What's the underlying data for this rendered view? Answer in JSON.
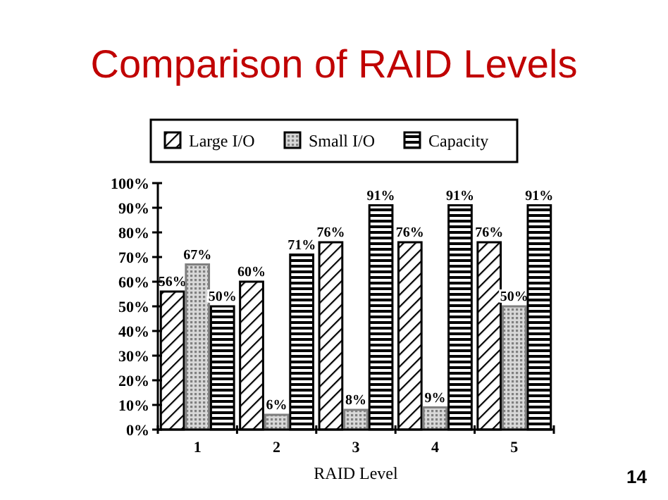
{
  "chart_data": {
    "type": "bar",
    "title": "Comparison of RAID Levels",
    "xlabel": "RAID Level",
    "categories": [
      "1",
      "2",
      "3",
      "4",
      "5"
    ],
    "series": [
      {
        "name": "Large I/O",
        "color": "#000000",
        "values": [
          56,
          60,
          76,
          76,
          76
        ],
        "value_labels": [
          "56%",
          "60%",
          "76%",
          "76%",
          "76%"
        ]
      },
      {
        "name": "Small I/O",
        "color": "#808080",
        "values": [
          67,
          6,
          8,
          9,
          50
        ],
        "value_labels": [
          "67%",
          "6%",
          "8%",
          "9%",
          "50%"
        ]
      },
      {
        "name": "Capacity",
        "color": "#000000",
        "values": [
          50,
          71,
          91,
          91,
          91
        ],
        "value_labels": [
          "50%",
          "71%",
          "91%",
          "91%",
          "91%"
        ]
      }
    ],
    "ylim": [
      0,
      100
    ],
    "yticks": [
      {
        "value": 0,
        "label": "0%"
      },
      {
        "value": 10,
        "label": "10%"
      },
      {
        "value": 20,
        "label": "20%"
      },
      {
        "value": 30,
        "label": "30%"
      },
      {
        "value": 40,
        "label": "40%"
      },
      {
        "value": 50,
        "label": "50%"
      },
      {
        "value": 60,
        "label": "60%"
      },
      {
        "value": 70,
        "label": "70%"
      },
      {
        "value": 80,
        "label": "80%"
      },
      {
        "value": 90,
        "label": "90%"
      },
      {
        "value": 100,
        "label": "100%"
      }
    ],
    "grid": false,
    "legend": "top",
    "annotations": [
      "14"
    ]
  }
}
